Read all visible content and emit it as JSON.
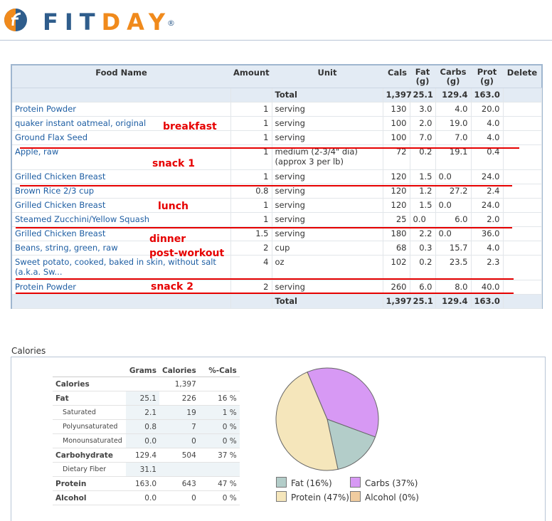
{
  "brand": {
    "part1": "FIT",
    "part2": "DAY",
    "reg": "®"
  },
  "food_table": {
    "headers": {
      "name": "Food Name",
      "amount": "Amount",
      "unit": "Unit",
      "cals": "Cals",
      "fat": "Fat\n(g)",
      "carbs": "Carbs\n(g)",
      "prot": "Prot\n(g)",
      "delete": "Delete"
    },
    "total": {
      "label": "Total",
      "cals": "1,397",
      "fat": "25.1",
      "carbs": "129.4",
      "prot": "163.0"
    },
    "rows": [
      {
        "name": "Protein Powder",
        "amount": "1",
        "unit": "serving",
        "cals": "130",
        "fat": "3.0",
        "carbs": "4.0",
        "prot": "20.0"
      },
      {
        "name": "quaker instant oatmeal, original",
        "amount": "1",
        "unit": "serving",
        "cals": "100",
        "fat": "2.0",
        "carbs": "19.0",
        "prot": "4.0"
      },
      {
        "name": "Ground Flax Seed",
        "amount": "1",
        "unit": "serving",
        "cals": "100",
        "fat": "7.0",
        "carbs": "7.0",
        "prot": "4.0"
      },
      {
        "name": "Apple, raw",
        "amount": "1",
        "unit": "medium (2-3/4\" dia) (approx 3 per lb)",
        "cals": "72",
        "fat": "0.2",
        "carbs": "19.1",
        "prot": "0.4"
      },
      {
        "name": "Grilled Chicken Breast",
        "amount": "1",
        "unit": "serving",
        "cals": "120",
        "fat": "1.5",
        "carbs": "0.0",
        "prot": "24.0"
      },
      {
        "name": "Brown Rice 2/3 cup",
        "amount": "0.8",
        "unit": "serving",
        "cals": "120",
        "fat": "1.2",
        "carbs": "27.2",
        "prot": "2.4"
      },
      {
        "name": "Grilled Chicken Breast",
        "amount": "1",
        "unit": "serving",
        "cals": "120",
        "fat": "1.5",
        "carbs": "0.0",
        "prot": "24.0"
      },
      {
        "name": "Steamed Zucchini/Yellow Squash",
        "amount": "1",
        "unit": "serving",
        "cals": "25",
        "fat": "0.0",
        "carbs": "6.0",
        "prot": "2.0"
      },
      {
        "name": "Grilled Chicken Breast",
        "amount": "1.5",
        "unit": "serving",
        "cals": "180",
        "fat": "2.2",
        "carbs": "0.0",
        "prot": "36.0"
      },
      {
        "name": "Beans, string, green, raw",
        "amount": "2",
        "unit": "cup",
        "cals": "68",
        "fat": "0.3",
        "carbs": "15.7",
        "prot": "4.0"
      },
      {
        "name": "Sweet potato, cooked, baked in skin, without salt (a.k.a. Sw...",
        "amount": "4",
        "unit": "oz",
        "cals": "102",
        "fat": "0.2",
        "carbs": "23.5",
        "prot": "2.3"
      },
      {
        "name": "Protein Powder",
        "amount": "2",
        "unit": "serving",
        "cals": "260",
        "fat": "6.0",
        "carbs": "8.0",
        "prot": "40.0"
      }
    ]
  },
  "annotations": {
    "breakfast": "breakfast",
    "snack1": "snack 1",
    "lunch": "lunch",
    "dinner": "dinner",
    "post_workout": "post-workout",
    "snack2": "snack 2"
  },
  "calories_section": {
    "title": "Calories",
    "headers": {
      "grams": "Grams",
      "calories": "Calories",
      "pct": "%-Cals"
    },
    "rows": [
      {
        "label": "Calories",
        "grams": "",
        "calories": "1,397",
        "pct": ""
      },
      {
        "label": "Fat",
        "grams": "25.1",
        "calories": "226",
        "pct": "16 %"
      },
      {
        "label": "Saturated",
        "grams": "2.1",
        "calories": "19",
        "pct": "1 %"
      },
      {
        "label": "Polyunsaturated",
        "grams": "0.8",
        "calories": "7",
        "pct": "0 %"
      },
      {
        "label": "Monounsaturated",
        "grams": "0.0",
        "calories": "0",
        "pct": "0 %"
      },
      {
        "label": "Carbohydrate",
        "grams": "129.4",
        "calories": "504",
        "pct": "37 %"
      },
      {
        "label": "Dietary Fiber",
        "grams": "31.1",
        "calories": "",
        "pct": ""
      },
      {
        "label": "Protein",
        "grams": "163.0",
        "calories": "643",
        "pct": "47 %"
      },
      {
        "label": "Alcohol",
        "grams": "0.0",
        "calories": "0",
        "pct": "0 %"
      }
    ]
  },
  "chart_data": {
    "type": "pie",
    "categories": [
      "Fat",
      "Carbs",
      "Protein",
      "Alcohol"
    ],
    "values": [
      16,
      37,
      47,
      0
    ],
    "colors": [
      "#b3cdc9",
      "#d799f4",
      "#f5e6bb",
      "#f0cc9f"
    ],
    "legend": [
      "Fat  (16%)",
      "Carbs  (37%)",
      "Protein  (47%)",
      "Alcohol  (0%)"
    ]
  }
}
